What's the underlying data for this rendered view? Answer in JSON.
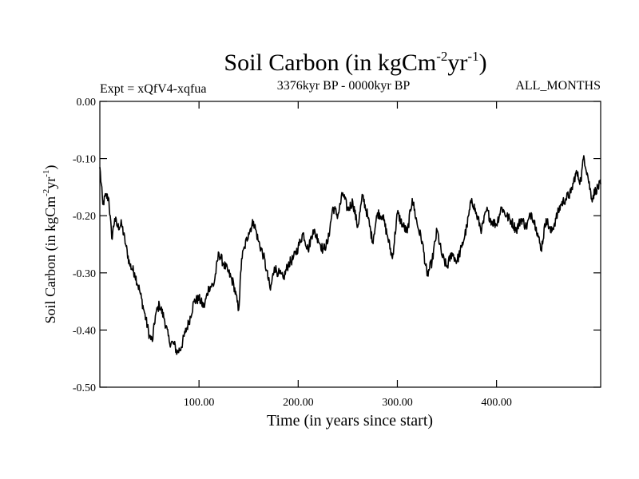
{
  "chart_data": {
    "type": "line",
    "title": "Soil Carbon (in kgCm-2yr-1)",
    "title_parts": {
      "base": "Soil Carbon (in kgCm",
      "sup1": "-2",
      "mid": "yr",
      "sup2": "-1",
      "end": ")"
    },
    "subtitle_left": "Expt = xQfV4-xqfua",
    "subtitle_center": "3376kyr BP - 0000kyr BP",
    "subtitle_right": "ALL_MONTHS",
    "xlabel": "Time (in years since start)",
    "ylabel": "Soil Carbon (in kgCm-2yr-1)",
    "ylabel_parts": {
      "base": "Soil Carbon (in kgCm",
      "sup1": "-2",
      "mid": "yr",
      "sup2": "-1",
      "end": ")"
    },
    "xlim": [
      0,
      505
    ],
    "ylim": [
      -0.5,
      0.0
    ],
    "xticks": [
      100,
      200,
      300,
      400
    ],
    "xtick_labels": [
      "100.00",
      "200.00",
      "300.00",
      "400.00"
    ],
    "yticks": [
      0.0,
      -0.1,
      -0.2,
      -0.3,
      -0.4,
      -0.5
    ],
    "ytick_labels": [
      "0.00",
      "-0.10",
      "-0.20",
      "-0.30",
      "-0.40",
      "-0.50"
    ],
    "series": [
      {
        "name": "Soil Carbon",
        "color": "#000000",
        "x": [
          0,
          3,
          6,
          9,
          12,
          15,
          18,
          22,
          26,
          30,
          35,
          40,
          45,
          50,
          53,
          56,
          60,
          65,
          70,
          75,
          78,
          82,
          86,
          90,
          95,
          100,
          105,
          110,
          115,
          120,
          125,
          130,
          135,
          140,
          143,
          146,
          150,
          155,
          160,
          165,
          168,
          172,
          176,
          180,
          185,
          190,
          195,
          200,
          205,
          210,
          215,
          220,
          225,
          230,
          235,
          240,
          245,
          250,
          255,
          260,
          265,
          270,
          275,
          280,
          285,
          290,
          295,
          300,
          305,
          310,
          315,
          320,
          325,
          330,
          335,
          340,
          345,
          350,
          355,
          360,
          365,
          370,
          375,
          380,
          385,
          390,
          395,
          400,
          405,
          410,
          415,
          420,
          425,
          430,
          435,
          440,
          445,
          450,
          455,
          460,
          465,
          470,
          475,
          480,
          485,
          488,
          492,
          496,
          500,
          505
        ],
        "y": [
          -0.115,
          -0.18,
          -0.165,
          -0.17,
          -0.24,
          -0.205,
          -0.22,
          -0.215,
          -0.25,
          -0.285,
          -0.3,
          -0.33,
          -0.37,
          -0.41,
          -0.42,
          -0.375,
          -0.355,
          -0.38,
          -0.42,
          -0.425,
          -0.44,
          -0.43,
          -0.405,
          -0.385,
          -0.35,
          -0.345,
          -0.36,
          -0.325,
          -0.32,
          -0.265,
          -0.285,
          -0.3,
          -0.32,
          -0.365,
          -0.275,
          -0.255,
          -0.23,
          -0.21,
          -0.245,
          -0.27,
          -0.295,
          -0.33,
          -0.29,
          -0.3,
          -0.31,
          -0.285,
          -0.275,
          -0.255,
          -0.23,
          -0.26,
          -0.225,
          -0.24,
          -0.26,
          -0.245,
          -0.185,
          -0.2,
          -0.16,
          -0.19,
          -0.175,
          -0.22,
          -0.165,
          -0.2,
          -0.245,
          -0.195,
          -0.2,
          -0.235,
          -0.275,
          -0.195,
          -0.215,
          -0.23,
          -0.17,
          -0.215,
          -0.245,
          -0.305,
          -0.28,
          -0.225,
          -0.27,
          -0.29,
          -0.265,
          -0.28,
          -0.255,
          -0.22,
          -0.17,
          -0.2,
          -0.225,
          -0.19,
          -0.21,
          -0.215,
          -0.185,
          -0.2,
          -0.21,
          -0.225,
          -0.205,
          -0.22,
          -0.195,
          -0.22,
          -0.26,
          -0.205,
          -0.23,
          -0.205,
          -0.18,
          -0.17,
          -0.16,
          -0.125,
          -0.14,
          -0.095,
          -0.13,
          -0.17,
          -0.155,
          -0.145
        ]
      }
    ]
  }
}
